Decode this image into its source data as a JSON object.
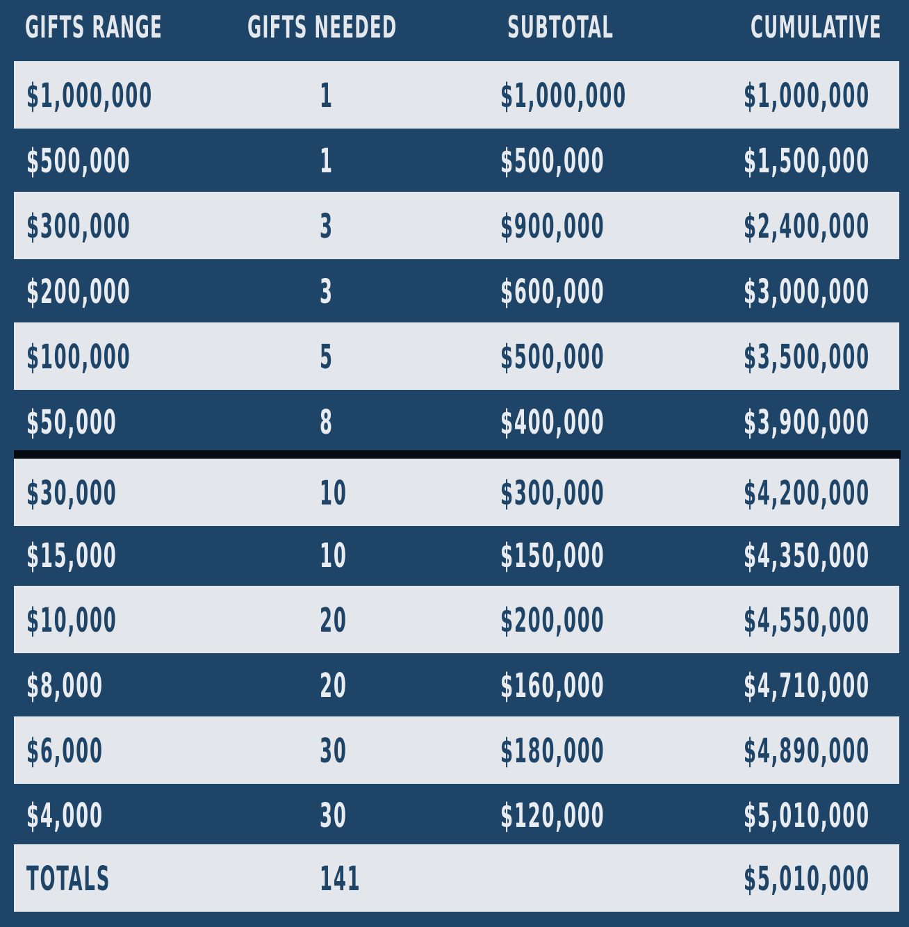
{
  "colors": {
    "navy": "#1e4468",
    "light_row": "#e3e6ea",
    "divider": "#050a10"
  },
  "headers": [
    "GIFTS RANGE",
    "GIFTS NEEDED",
    "SUBTOTAL",
    "CUMULATIVE"
  ],
  "rows": [
    {
      "range": "$1,000,000",
      "needed": "1",
      "subtotal": "$1,000,000",
      "cumulative": "$1,000,000"
    },
    {
      "range": "$500,000",
      "needed": "1",
      "subtotal": "$500,000",
      "cumulative": "$1,500,000"
    },
    {
      "range": "$300,000",
      "needed": "3",
      "subtotal": "$900,000",
      "cumulative": "$2,400,000"
    },
    {
      "range": "$200,000",
      "needed": "3",
      "subtotal": "$600,000",
      "cumulative": "$3,000,000"
    },
    {
      "range": "$100,000",
      "needed": "5",
      "subtotal": "$500,000",
      "cumulative": "$3,500,000"
    },
    {
      "range": "$50,000",
      "needed": "8",
      "subtotal": "$400,000",
      "cumulative": "$3,900,000"
    },
    {
      "range": "$30,000",
      "needed": "10",
      "subtotal": "$300,000",
      "cumulative": "$4,200,000"
    },
    {
      "range": "$15,000",
      "needed": "10",
      "subtotal": "$150,000",
      "cumulative": "$4,350,000"
    },
    {
      "range": "$10,000",
      "needed": "20",
      "subtotal": "$200,000",
      "cumulative": "$4,550,000"
    },
    {
      "range": "$8,000",
      "needed": "20",
      "subtotal": "$160,000",
      "cumulative": "$4,710,000"
    },
    {
      "range": "$6,000",
      "needed": "30",
      "subtotal": "$180,000",
      "cumulative": "$4,890,000"
    },
    {
      "range": "$4,000",
      "needed": "30",
      "subtotal": "$120,000",
      "cumulative": "$5,010,000"
    }
  ],
  "totals": {
    "label": "TOTALS",
    "needed": "141",
    "subtotal": "",
    "cumulative": "$5,010,000"
  }
}
